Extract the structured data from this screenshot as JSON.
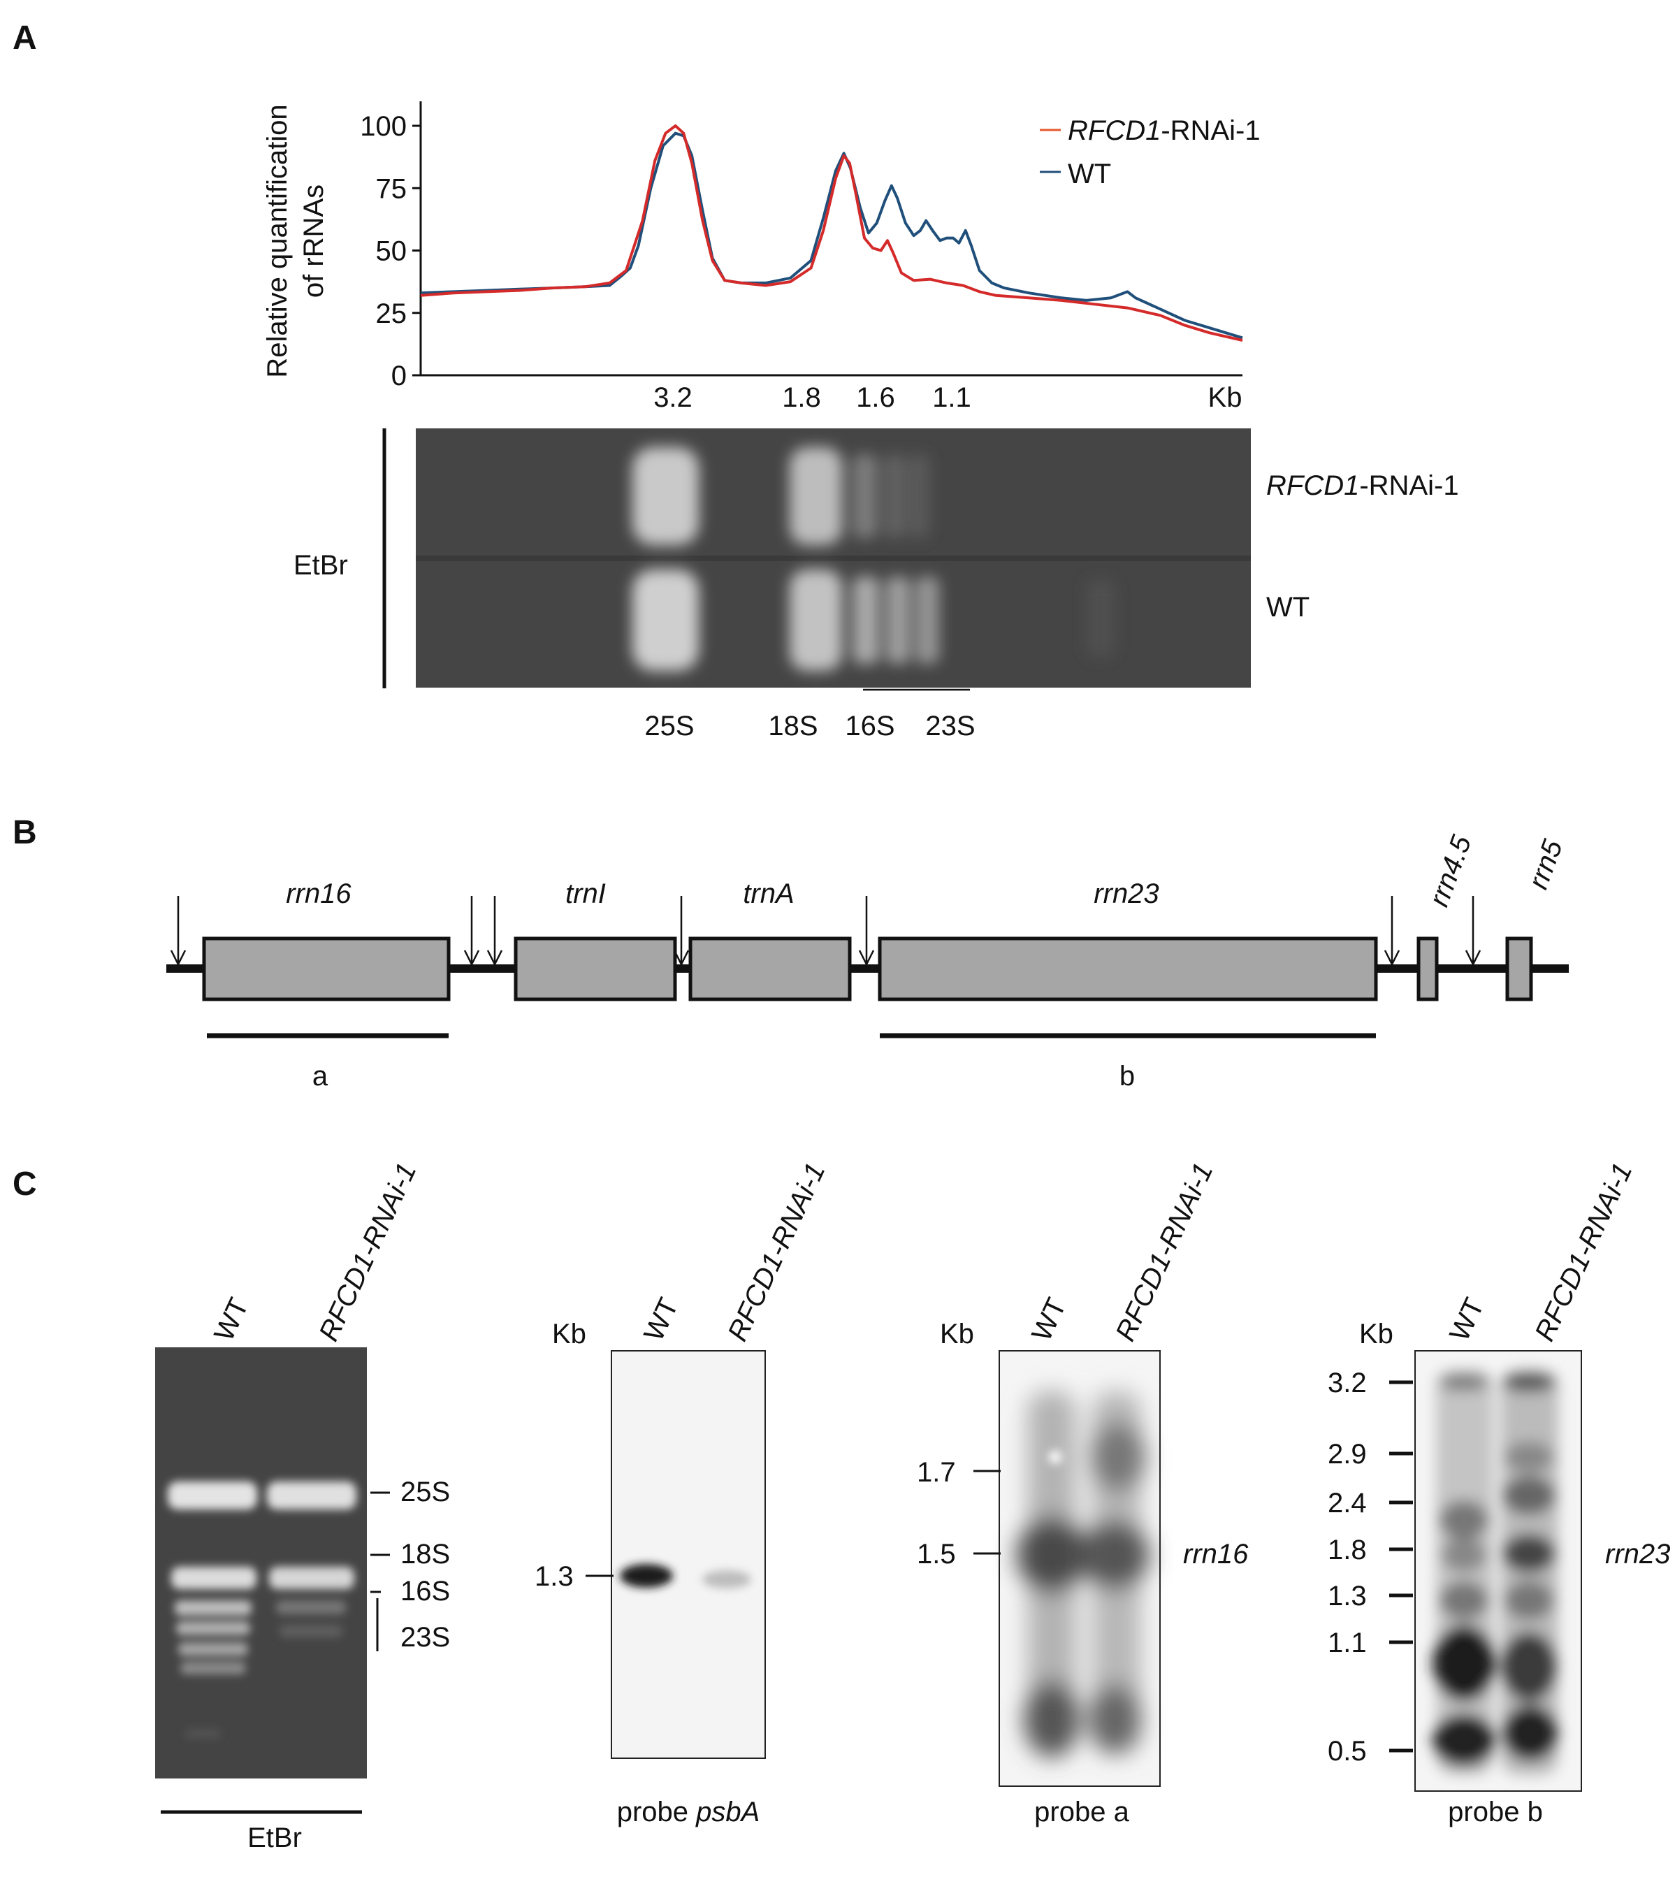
{
  "panels": {
    "a": "A",
    "b": "B",
    "c": "C"
  },
  "colors": {
    "rnai": "#d42a2a",
    "wt": "#1f4f7a",
    "legend_rnai": "#e4572e",
    "wt_legend": "#1f4f7a"
  },
  "panelA": {
    "chart_data": {
      "type": "line",
      "ylabel_line1": "Relative quantification",
      "ylabel_line2": "of rRNAs",
      "y_ticks": [
        "100",
        "75",
        "50",
        "25",
        "0"
      ],
      "x_ticks": [
        "3.2",
        "1.8",
        "1.6",
        "1.1"
      ],
      "x_unit": "Kb",
      "ylim": [
        0,
        100
      ],
      "xlim": [
        0,
        100
      ],
      "series": [
        {
          "name": "RFCD1-RNAi-1",
          "name_italic": "RFCD1",
          "name_rest": "-RNAi-1",
          "points": [
            [
              0,
              32
            ],
            [
              4,
              33
            ],
            [
              8,
              33.5
            ],
            [
              12,
              34
            ],
            [
              16,
              35
            ],
            [
              20,
              35.5
            ],
            [
              23,
              37
            ],
            [
              25,
              42
            ],
            [
              27,
              62
            ],
            [
              28.5,
              86
            ],
            [
              29.8,
              97
            ],
            [
              31,
              100
            ],
            [
              32,
              97
            ],
            [
              33,
              85
            ],
            [
              34.3,
              62
            ],
            [
              35.5,
              46
            ],
            [
              37,
              38
            ],
            [
              39,
              37
            ],
            [
              42,
              36
            ],
            [
              45,
              37.5
            ],
            [
              47.5,
              43
            ],
            [
              49,
              58
            ],
            [
              50.5,
              79
            ],
            [
              51.5,
              88
            ],
            [
              52.2,
              85
            ],
            [
              53,
              72
            ],
            [
              54,
              55
            ],
            [
              55,
              51
            ],
            [
              56,
              50
            ],
            [
              56.8,
              54
            ],
            [
              57.5,
              49
            ],
            [
              58.5,
              41
            ],
            [
              60,
              38
            ],
            [
              62,
              38.5
            ],
            [
              64,
              37
            ],
            [
              66,
              36
            ],
            [
              68,
              33.5
            ],
            [
              70,
              32
            ],
            [
              74,
              31
            ],
            [
              78,
              30
            ],
            [
              82,
              28.5
            ],
            [
              86,
              27
            ],
            [
              90,
              24
            ],
            [
              93,
              20
            ],
            [
              96,
              17
            ],
            [
              100,
              14
            ]
          ]
        },
        {
          "name": "WT",
          "points": [
            [
              0,
              33
            ],
            [
              4,
              33.5
            ],
            [
              8,
              34
            ],
            [
              12,
              34.5
            ],
            [
              16,
              35
            ],
            [
              20,
              35.5
            ],
            [
              23,
              36
            ],
            [
              24.5,
              40
            ],
            [
              25.5,
              43
            ],
            [
              26.5,
              52
            ],
            [
              28,
              75
            ],
            [
              29.5,
              92
            ],
            [
              31,
              97
            ],
            [
              32,
              96
            ],
            [
              33,
              88
            ],
            [
              34.3,
              66
            ],
            [
              35.5,
              47
            ],
            [
              37,
              38
            ],
            [
              39,
              37
            ],
            [
              42,
              37
            ],
            [
              45,
              39
            ],
            [
              47.5,
              46
            ],
            [
              49,
              63
            ],
            [
              50.5,
              82
            ],
            [
              51.5,
              89
            ],
            [
              52.3,
              83
            ],
            [
              53.5,
              67
            ],
            [
              54.5,
              57
            ],
            [
              55.5,
              61
            ],
            [
              56.5,
              70
            ],
            [
              57.3,
              76
            ],
            [
              58,
              71
            ],
            [
              59,
              61
            ],
            [
              60,
              56
            ],
            [
              60.8,
              58
            ],
            [
              61.5,
              62
            ],
            [
              62.3,
              58
            ],
            [
              63.2,
              54
            ],
            [
              64,
              55
            ],
            [
              64.8,
              55
            ],
            [
              65.5,
              53
            ],
            [
              66.3,
              58
            ],
            [
              67,
              52
            ],
            [
              68,
              42
            ],
            [
              69.5,
              37
            ],
            [
              71,
              35
            ],
            [
              74,
              33
            ],
            [
              78,
              31
            ],
            [
              81,
              30
            ],
            [
              84,
              31
            ],
            [
              86,
              33.5
            ],
            [
              87,
              31
            ],
            [
              89,
              28
            ],
            [
              93,
              22
            ],
            [
              96,
              19
            ],
            [
              100,
              15
            ]
          ]
        }
      ]
    },
    "legend": [
      {
        "italic": "RFCD1",
        "rest": "-RNAi-1"
      },
      {
        "italic": "",
        "rest": "WT"
      }
    ],
    "gel": {
      "left_label": "EtBr",
      "lane_top": {
        "italic": "RFCD1",
        "rest": "-RNAi-1"
      },
      "lane_bottom": "WT",
      "band_labels": [
        "25S",
        "18S",
        "16S",
        "23S"
      ]
    }
  },
  "panelB": {
    "genes": [
      "rrn16",
      "trnI",
      "trnA",
      "rrn23",
      "rrn4.5",
      "rrn5"
    ],
    "probes": [
      "a",
      "b"
    ]
  },
  "panelC": {
    "blot1": {
      "lanes": [
        "WT",
        "RFCD1-RNAi-1"
      ],
      "markers": [
        "25S",
        "18S",
        "16S",
        "23S"
      ],
      "bottom_label": "EtBr"
    },
    "blot2": {
      "unit": "Kb",
      "lanes": [
        "WT",
        "RFCD1-RNAi-1"
      ],
      "sizes": [
        "1.3"
      ],
      "probe_prefix": "probe ",
      "probe_name": "psbA"
    },
    "blot3": {
      "unit": "Kb",
      "lanes": [
        "WT",
        "RFCD1-RNAi-1"
      ],
      "sizes": [
        "1.7",
        "1.5"
      ],
      "target": "rrn16",
      "probe": "probe a"
    },
    "blot4": {
      "unit": "Kb",
      "lanes": [
        "WT",
        "RFCD1-RNAi-1"
      ],
      "sizes": [
        "3.2",
        "2.9",
        "2.4",
        "1.8",
        "1.3",
        "1.1",
        "0.5"
      ],
      "target": "rrn23",
      "probe": "probe b"
    }
  }
}
